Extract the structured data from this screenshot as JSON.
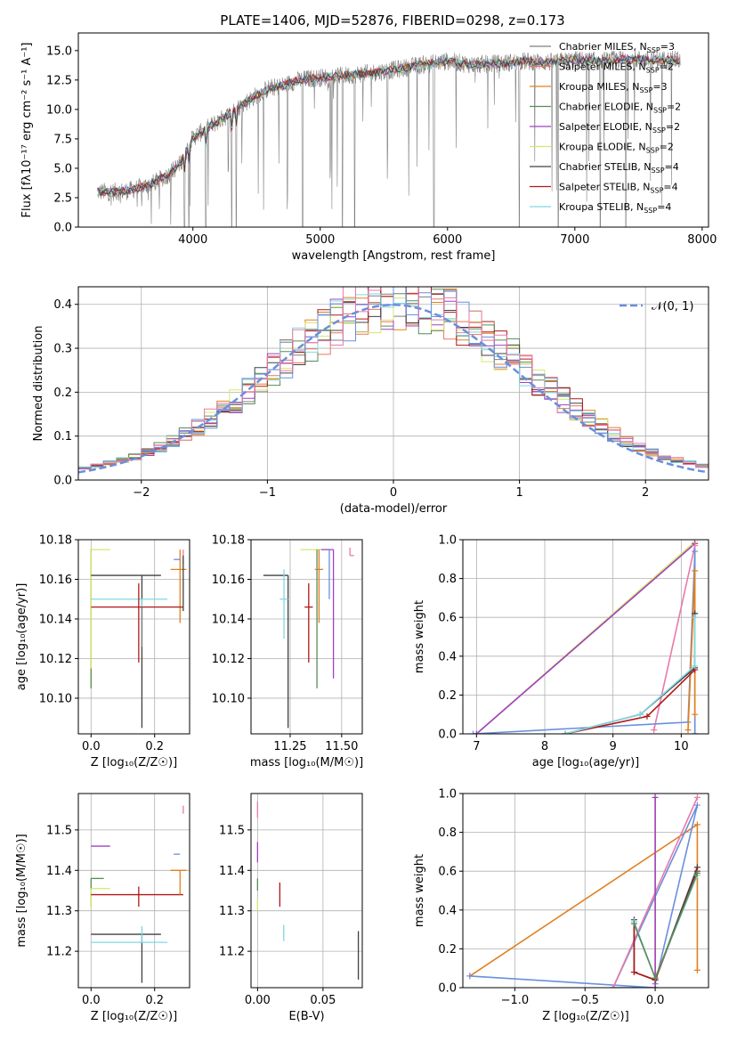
{
  "figure": {
    "title": "PLATE=1406, MJD=52876, FIBERID=0298, z=0.173"
  },
  "colors": {
    "Chabrier MILES": "#7f7f7f",
    "Salpeter MILES": "#ef7263",
    "Kroupa MILES": "#e08020",
    "Chabrier ELODIE": "#5a8a5a",
    "Salpeter ELODIE": "#a040c0",
    "Kroupa ELODIE": "#d4e86a",
    "Chabrier STELIB": "#404040",
    "Salpeter STELIB": "#b01818",
    "Kroupa STELIB": "#80d8e0",
    "extra_blue": "#6a8fdc",
    "extra_pink": "#e87aaa",
    "gaussian": "#6a8fdc"
  },
  "chart_data": [
    {
      "id": "spectrum",
      "type": "line",
      "title": "PLATE=1406, MJD=52876, FIBERID=0298, z=0.173",
      "xlabel": "wavelength [Angstrom, rest frame]",
      "ylabel": "Flux [fλ10⁻¹⁷ erg cm⁻² s⁻¹ A⁻¹]",
      "xlim": [
        3100,
        8050
      ],
      "ylim": [
        0,
        16.5
      ],
      "xticks": [
        4000,
        5000,
        6000,
        7000,
        8000
      ],
      "yticks": [
        0.0,
        2.5,
        5.0,
        7.5,
        10.0,
        12.5,
        15.0
      ],
      "grid": false,
      "legend_position": "top-right",
      "legend": [
        "Chabrier MILES, N_SSP=3",
        "Salpeter MILES, N_SSP=2",
        "Kroupa MILES, N_SSP=3",
        "Chabrier ELODIE, N_SSP=2",
        "Salpeter ELODIE, N_SSP=2",
        "Kroupa ELODIE, N_SSP=2",
        "Chabrier STELIB, N_SSP=4",
        "Salpeter STELIB, N_SSP=4",
        "Kroupa STELIB, N_SSP=4"
      ],
      "continuum": {
        "x": [
          3250,
          3400,
          3500,
          3600,
          3700,
          3800,
          3900,
          3950,
          4000,
          4100,
          4200,
          4300,
          4400,
          4500,
          4600,
          4700,
          4800,
          4900,
          5000,
          5200,
          5400,
          5600,
          5800,
          6000,
          6200,
          6400,
          6600,
          6800,
          7000,
          7200,
          7400,
          7600,
          7800
        ],
        "y": [
          3.0,
          3.0,
          3.1,
          3.4,
          3.8,
          4.4,
          5.4,
          6.5,
          7.6,
          8.3,
          9.0,
          9.7,
          10.5,
          11.2,
          11.8,
          12.0,
          12.4,
          12.6,
          12.7,
          12.9,
          13.1,
          13.4,
          13.8,
          14.1,
          13.8,
          13.9,
          14.1,
          14.0,
          14.2,
          14.1,
          14.3,
          14.2,
          14.2
        ]
      },
      "absorption_lines": [
        3934,
        3969,
        4102,
        4305,
        4340,
        4861,
        5175,
        5270,
        5893,
        6563,
        6870,
        7200,
        7400
      ]
    },
    {
      "id": "residual-histogram",
      "type": "bar",
      "xlabel": "(data-model)/error",
      "ylabel": "Normed distribution",
      "xlim": [
        -2.5,
        2.5
      ],
      "ylim": [
        0,
        0.44
      ],
      "xticks": [
        -2,
        -1,
        0,
        1,
        2
      ],
      "yticks": [
        0.0,
        0.1,
        0.2,
        0.3,
        0.4
      ],
      "grid": true,
      "legend_position": "top-right",
      "legend": [
        "𝒩(0, 1)"
      ],
      "gaussian": {
        "mean": 0,
        "sigma": 1
      }
    },
    {
      "id": "age-vs-Z",
      "type": "scatter",
      "xlabel": "Z [log₁₀(Z/Z☉)]",
      "ylabel": "age  [log₁₀(age/yr)]",
      "xlim": [
        -0.04,
        0.31
      ],
      "ylim": [
        10.082,
        10.18
      ],
      "xticks": [
        0.0,
        0.2
      ],
      "yticks": [
        10.1,
        10.12,
        10.14,
        10.16,
        10.18
      ],
      "grid": true,
      "points": [
        {
          "series": "Kroupa ELODIE",
          "x": 0.0,
          "y": 10.175,
          "xerr": [
            0.0,
            0.06
          ],
          "yerr": [
            0.07,
            0.0
          ]
        },
        {
          "series": "Chabrier ELODIE",
          "x": 0.0,
          "y": 10.175,
          "xerr": [
            0.0,
            0.0
          ],
          "yerr": [
            0.07,
            0.0
          ]
        },
        {
          "series": "Kroupa ELODIE",
          "x": 0.0,
          "y": 10.175,
          "xerr": [
            0.0,
            0.0
          ],
          "yerr": [
            0.06,
            0.0
          ]
        },
        {
          "series": "Chabrier STELIB",
          "x": 0.16,
          "y": 10.162,
          "xerr": [
            0.16,
            0.06
          ],
          "yerr": [
            0.077,
            0.0
          ]
        },
        {
          "series": "Kroupa MILES",
          "x": 0.28,
          "y": 10.165,
          "xerr": [
            0.03,
            0.02
          ],
          "yerr": [
            0.027,
            0.01
          ]
        },
        {
          "series": "extra_pink",
          "x": 0.29,
          "y": 10.172,
          "xerr": [
            0.0,
            0.0
          ],
          "yerr": [
            0.004,
            0.003
          ]
        },
        {
          "series": "extra_blue",
          "x": 0.28,
          "y": 10.17,
          "xerr": [
            0.02,
            0.0
          ],
          "yerr": [
            0.0,
            0.0
          ]
        },
        {
          "series": "Kroupa STELIB",
          "x": 0.16,
          "y": 10.15,
          "xerr": [
            0.16,
            0.08
          ],
          "yerr": [
            0.02,
            0.0
          ]
        },
        {
          "series": "Salpeter STELIB",
          "x": 0.15,
          "y": 10.146,
          "xerr": [
            0.15,
            0.14
          ],
          "yerr": [
            0.028,
            0.012
          ]
        },
        {
          "series": "Chabrier MILES",
          "x": 0.16,
          "y": 10.146,
          "xerr": [
            0.0,
            0.0
          ],
          "yerr": [
            0.02,
            0.0
          ]
        },
        {
          "series": "Chabrier STELIB",
          "x": 0.29,
          "y": 10.172,
          "xerr": [
            0.0,
            0.0
          ],
          "yerr": [
            0.028,
            0.0
          ]
        }
      ]
    },
    {
      "id": "age-vs-mass",
      "type": "scatter",
      "xlabel": "mass [log₁₀(M/M☉)]",
      "ylabel": "",
      "xlim": [
        11.06,
        11.6
      ],
      "ylim": [
        10.082,
        10.18
      ],
      "xticks": [
        11.25,
        11.5
      ],
      "yticks": [
        10.1,
        10.12,
        10.14,
        10.16,
        10.18
      ],
      "grid": true,
      "points": [
        {
          "series": "Chabrier STELIB",
          "x": 11.24,
          "y": 10.162,
          "xerr": [
            0.12,
            0.0
          ],
          "yerr": [
            0.077,
            0.0
          ]
        },
        {
          "series": "Kroupa STELIB",
          "x": 11.22,
          "y": 10.15,
          "xerr": [
            0.02,
            0.02
          ],
          "yerr": [
            0.02,
            0.015
          ]
        },
        {
          "series": "Salpeter STELIB",
          "x": 11.34,
          "y": 10.146,
          "xerr": [
            0.02,
            0.02
          ],
          "yerr": [
            0.028,
            0.012
          ]
        },
        {
          "series": "Kroupa ELODIE",
          "x": 11.36,
          "y": 10.175,
          "xerr": [
            0.06,
            0.04
          ],
          "yerr": [
            0.0,
            0.0
          ]
        },
        {
          "series": "Chabrier ELODIE",
          "x": 11.38,
          "y": 10.175,
          "xerr": [
            0.0,
            0.0
          ],
          "yerr": [
            0.07,
            0.0
          ]
        },
        {
          "series": "Kroupa MILES",
          "x": 11.39,
          "y": 10.165,
          "xerr": [
            0.02,
            0.02
          ],
          "yerr": [
            0.027,
            0.01
          ]
        },
        {
          "series": "Salpeter ELODIE",
          "x": 11.46,
          "y": 10.175,
          "xerr": [
            0.06,
            0.0
          ],
          "yerr": [
            0.065,
            0.0
          ]
        },
        {
          "series": "extra_blue",
          "x": 11.44,
          "y": 10.175,
          "xerr": [
            0.0,
            0.0
          ],
          "yerr": [
            0.025,
            0.0
          ]
        },
        {
          "series": "extra_pink",
          "x": 11.54,
          "y": 10.172,
          "xerr": [
            0.0,
            0.02
          ],
          "yerr": [
            0.0,
            0.004
          ]
        }
      ]
    },
    {
      "id": "massweight-vs-age",
      "type": "line",
      "xlabel": "age  [log₁₀(age/yr)]",
      "ylabel": "mass weight",
      "xlim": [
        6.8,
        10.4
      ],
      "ylim": [
        0.0,
        1.0
      ],
      "xticks": [
        7,
        8,
        9,
        10
      ],
      "yticks": [
        0.0,
        0.2,
        0.4,
        0.6,
        0.8,
        1.0
      ],
      "grid": true,
      "series": [
        {
          "color": "Kroupa ELODIE",
          "x": [
            7.0,
            10.2
          ],
          "y": [
            0.0,
            0.99
          ]
        },
        {
          "color": "Salpeter ELODIE",
          "x": [
            7.0,
            10.2
          ],
          "y": [
            0.0,
            0.98
          ]
        },
        {
          "color": "extra_pink",
          "x": [
            9.6,
            10.2,
            10.2
          ],
          "y": [
            0.02,
            0.97,
            0.0
          ]
        },
        {
          "color": "extra_blue",
          "x": [
            6.95,
            10.1,
            10.2,
            10.2
          ],
          "y": [
            0.0,
            0.06,
            0.94,
            0.0
          ]
        },
        {
          "color": "Kroupa MILES",
          "x": [
            10.1,
            10.2,
            10.2
          ],
          "y": [
            0.02,
            0.84,
            0.1
          ]
        },
        {
          "color": "Chabrier STELIB",
          "x": [
            8.3,
            9.4,
            10.2,
            10.2
          ],
          "y": [
            0.0,
            0.1,
            0.34,
            0.62
          ]
        },
        {
          "color": "Salpeter STELIB",
          "x": [
            8.3,
            9.5,
            10.2
          ],
          "y": [
            0.0,
            0.09,
            0.33
          ]
        },
        {
          "color": "Kroupa STELIB",
          "x": [
            8.3,
            9.4,
            10.2,
            10.2
          ],
          "y": [
            0.0,
            0.1,
            0.35,
            0.6
          ]
        }
      ]
    },
    {
      "id": "mass-vs-Z",
      "type": "scatter",
      "xlabel": "Z [log₁₀(Z/Z☉)]",
      "ylabel": "mass [log₁₀(M/M☉)]",
      "xlim": [
        -0.04,
        0.31
      ],
      "ylim": [
        11.11,
        11.59
      ],
      "xticks": [
        0.0,
        0.2
      ],
      "yticks": [
        11.2,
        11.3,
        11.4,
        11.5
      ],
      "grid": true,
      "points": [
        {
          "series": "Salpeter ELODIE",
          "x": 0.0,
          "y": 11.46,
          "xerr": [
            0.0,
            0.06
          ],
          "yerr": [
            0.0,
            0.0
          ]
        },
        {
          "series": "Chabrier ELODIE",
          "x": 0.0,
          "y": 11.38,
          "xerr": [
            0.0,
            0.04
          ],
          "yerr": [
            0.07,
            0.0
          ]
        },
        {
          "series": "Kroupa ELODIE",
          "x": 0.0,
          "y": 11.355,
          "xerr": [
            0.0,
            0.06
          ],
          "yerr": [
            0.05,
            0.0
          ]
        },
        {
          "series": "Salpeter STELIB",
          "x": 0.15,
          "y": 11.34,
          "xerr": [
            0.15,
            0.14
          ],
          "yerr": [
            0.03,
            0.02
          ]
        },
        {
          "series": "Chabrier STELIB",
          "x": 0.16,
          "y": 11.242,
          "xerr": [
            0.16,
            0.06
          ],
          "yerr": [
            0.12,
            0.0
          ]
        },
        {
          "series": "Kroupa STELIB",
          "x": 0.16,
          "y": 11.222,
          "xerr": [
            0.16,
            0.08
          ],
          "yerr": [
            0.0,
            0.04
          ]
        },
        {
          "series": "Kroupa MILES",
          "x": 0.28,
          "y": 11.4,
          "xerr": [
            0.03,
            0.02
          ],
          "yerr": [
            0.06,
            0.0
          ]
        },
        {
          "series": "extra_blue",
          "x": 0.28,
          "y": 11.44,
          "xerr": [
            0.02,
            0.0
          ],
          "yerr": [
            0.0,
            0.0
          ]
        },
        {
          "series": "extra_pink",
          "x": 0.29,
          "y": 11.54,
          "xerr": [
            0.0,
            0.0
          ],
          "yerr": [
            0.0,
            0.02
          ]
        }
      ]
    },
    {
      "id": "ebv",
      "type": "scatter",
      "xlabel": "E(B-V)",
      "ylabel": "",
      "xlim": [
        -0.005,
        0.08
      ],
      "ylim": [
        11.11,
        11.59
      ],
      "xticks": [
        0.0,
        0.05
      ],
      "yticks": [
        11.2,
        11.3,
        11.4,
        11.5
      ],
      "grid": true,
      "points": [
        {
          "series": "extra_pink",
          "x": 0.0,
          "y": 11.55,
          "yerr": [
            0.02,
            0.02
          ]
        },
        {
          "series": "Salpeter ELODIE",
          "x": 0.0,
          "y": 11.45,
          "yerr": [
            0.03,
            0.02
          ]
        },
        {
          "series": "Chabrier ELODIE",
          "x": 0.0,
          "y": 11.38,
          "yerr": [
            0.03,
            0.0
          ]
        },
        {
          "series": "Kroupa ELODIE",
          "x": 0.0,
          "y": 11.33,
          "yerr": [
            0.03,
            0.0
          ]
        },
        {
          "series": "Salpeter STELIB",
          "x": 0.017,
          "y": 11.34,
          "yerr": [
            0.03,
            0.03
          ]
        },
        {
          "series": "Kroupa STELIB",
          "x": 0.02,
          "y": 11.225,
          "yerr": [
            0.0,
            0.04
          ]
        },
        {
          "series": "Chabrier STELIB",
          "x": 0.077,
          "y": 11.19,
          "yerr": [
            0.06,
            0.06
          ]
        }
      ]
    },
    {
      "id": "massweight-vs-Z",
      "type": "line",
      "xlabel": "Z [log₁₀(Z/Z☉)]",
      "ylabel": "mass weight",
      "xlim": [
        -1.37,
        0.38
      ],
      "ylim": [
        0.0,
        1.0
      ],
      "xticks": [
        -1.0,
        -0.5,
        0.0
      ],
      "yticks": [
        0.0,
        0.2,
        0.4,
        0.6,
        0.8,
        1.0
      ],
      "grid": true,
      "series": [
        {
          "color": "Kroupa MILES",
          "x": [
            -1.32,
            0.3,
            0.3
          ],
          "y": [
            0.06,
            0.84,
            0.09
          ]
        },
        {
          "color": "extra_blue",
          "x": [
            -1.32,
            0.0,
            -0.3,
            0.3,
            0.0
          ],
          "y": [
            0.06,
            0.0,
            0.0,
            0.94,
            0.02
          ]
        },
        {
          "color": "extra_pink",
          "x": [
            -0.3,
            0.3
          ],
          "y": [
            0.0,
            0.98
          ]
        },
        {
          "color": "Kroupa ELODIE",
          "x": [
            0.0,
            0.0
          ],
          "y": [
            0.0,
            1.0
          ]
        },
        {
          "color": "Salpeter ELODIE",
          "x": [
            0.0,
            0.0
          ],
          "y": [
            0.0,
            0.98
          ]
        },
        {
          "color": "Chabrier STELIB",
          "x": [
            -0.15,
            -0.15,
            0.0,
            0.3
          ],
          "y": [
            0.35,
            0.08,
            0.04,
            0.62
          ]
        },
        {
          "color": "Salpeter STELIB",
          "x": [
            -0.15,
            -0.15,
            0.0,
            0.3
          ],
          "y": [
            0.33,
            0.08,
            0.04,
            0.6
          ]
        },
        {
          "color": "Kroupa STELIB",
          "x": [
            -0.15,
            0.0,
            0.3
          ],
          "y": [
            0.34,
            0.05,
            0.58
          ]
        },
        {
          "color": "Chabrier ELODIE",
          "x": [
            -0.15,
            0.0,
            0.3
          ],
          "y": [
            0.33,
            0.05,
            0.59
          ]
        }
      ]
    }
  ]
}
